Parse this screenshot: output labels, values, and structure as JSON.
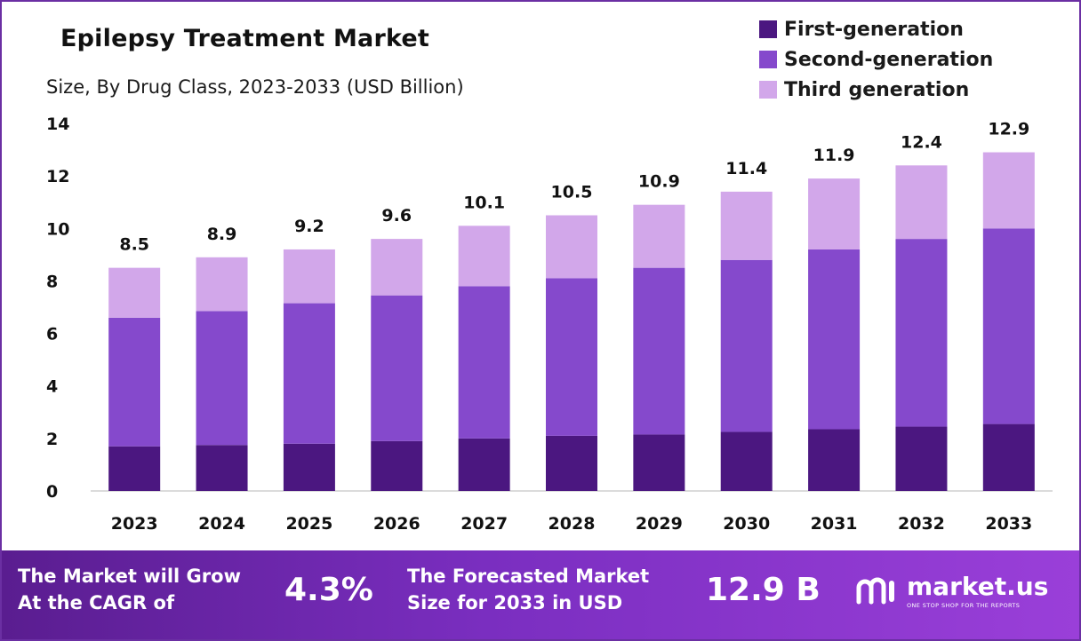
{
  "chart_data": {
    "type": "bar",
    "stacked": true,
    "title": "Epilepsy Treatment Market",
    "subtitle": "Size, By Drug Class, 2023-2033 (USD Billion)",
    "categories": [
      "2023",
      "2024",
      "2025",
      "2026",
      "2027",
      "2028",
      "2029",
      "2030",
      "2031",
      "2032",
      "2033"
    ],
    "series": [
      {
        "name": "First-generation",
        "color": "#4b1780",
        "values": [
          1.7,
          1.75,
          1.8,
          1.9,
          2.0,
          2.1,
          2.15,
          2.25,
          2.35,
          2.45,
          2.55
        ]
      },
      {
        "name": "Second-generation",
        "color": "#8549cc",
        "values": [
          4.9,
          5.1,
          5.35,
          5.55,
          5.8,
          6.0,
          6.35,
          6.55,
          6.85,
          7.15,
          7.45
        ]
      },
      {
        "name": "Third generation",
        "color": "#d2a7ea",
        "values": [
          1.9,
          2.05,
          2.05,
          2.15,
          2.3,
          2.4,
          2.4,
          2.6,
          2.7,
          2.8,
          2.9
        ]
      }
    ],
    "totals": [
      8.5,
      8.9,
      9.2,
      9.6,
      10.1,
      10.5,
      10.9,
      11.4,
      11.9,
      12.4,
      12.9
    ],
    "total_labels": [
      "8.5",
      "8.9",
      "9.2",
      "9.6",
      "10.1",
      "10.5",
      "10.9",
      "11.4",
      "11.9",
      "12.4",
      "12.9"
    ],
    "y_ticks": [
      0,
      2,
      4,
      6,
      8,
      10,
      12,
      14
    ],
    "ylim": [
      0,
      14
    ],
    "xlabel": "",
    "ylabel": "",
    "legend_position": "top-right"
  },
  "banner": {
    "cagr_text_line1": "The Market will Grow",
    "cagr_text_line2": "At the CAGR of",
    "cagr_value": "4.3%",
    "forecast_text_line1": "The Forecasted Market",
    "forecast_text_line2": "Size for 2033 in USD",
    "forecast_value": "12.9 B",
    "brand_name": "market.us",
    "brand_tagline": "ONE STOP SHOP FOR THE REPORTS"
  }
}
